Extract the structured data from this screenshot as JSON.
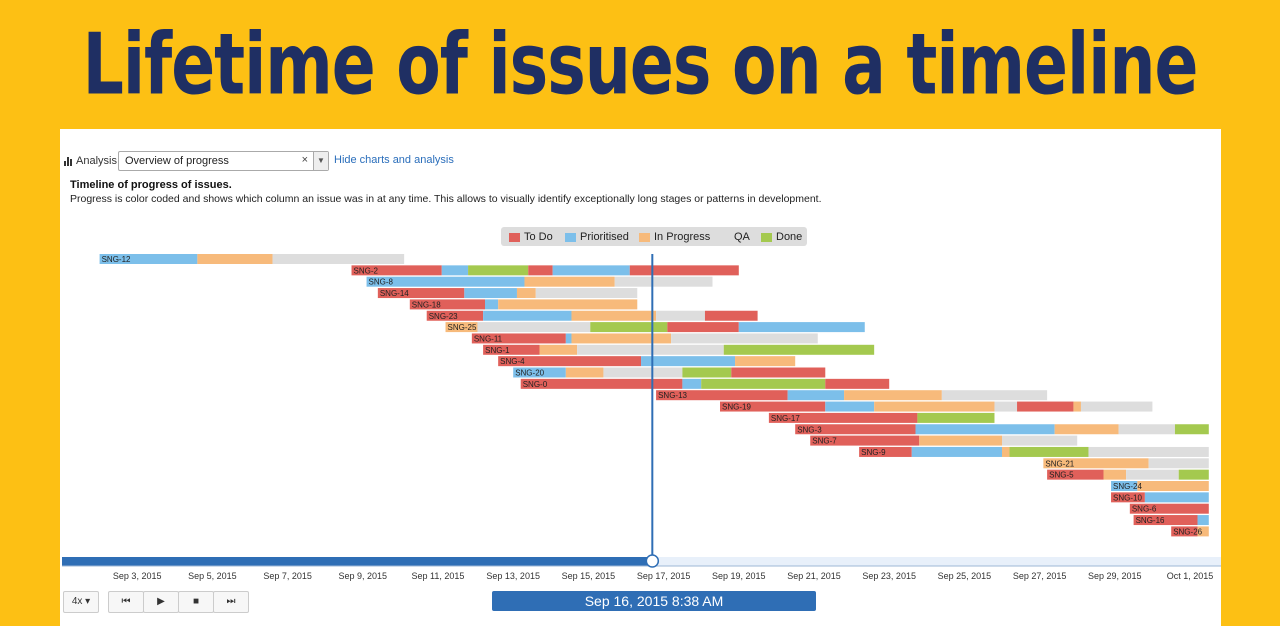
{
  "banner": {
    "title": "Lifetime of issues on a timeline"
  },
  "analysis": {
    "label": "Analysis",
    "select_value": "Overview of progress",
    "clear_glyph": "×",
    "hide_link": "Hide charts and analysis"
  },
  "description": {
    "title": "Timeline of progress of issues.",
    "text": "Progress is color coded and shows which column an issue was in at any time. This allows to visually identify exceptionally long stages or patterns in development."
  },
  "colors": {
    "To Do": "#E0605A",
    "Prioritised": "#7CBFEA",
    "In Progress": "#F7BA7B",
    "QA": "#DDDDDD",
    "Done": "#A4C94F",
    "cursor": "#2F6EB5"
  },
  "legend": [
    {
      "label": "To Do",
      "key": "To Do"
    },
    {
      "label": "Prioritised",
      "key": "Prioritised"
    },
    {
      "label": "In Progress",
      "key": "In Progress"
    },
    {
      "label": "QA",
      "key": "QA"
    },
    {
      "label": "Done",
      "key": "Done"
    }
  ],
  "chart_data": {
    "type": "bar",
    "orientation": "horizontal-gantt",
    "x_range_days": [
      0,
      30
    ],
    "x_ticks": [
      "Sep 3, 2015",
      "Sep 5, 2015",
      "Sep 7, 2015",
      "Sep 9, 2015",
      "Sep 11, 2015",
      "Sep 13, 2015",
      "Sep 15, 2015",
      "Sep 17, 2015",
      "Sep 19, 2015",
      "Sep 21, 2015",
      "Sep 23, 2015",
      "Sep 25, 2015",
      "Sep 27, 2015",
      "Sep 29, 2015",
      "Oct 1, 2015"
    ],
    "current_time_day": 15.7,
    "issues": [
      {
        "name": "SNG-12",
        "segments": [
          [
            1,
            3.6,
            "Prioritised"
          ],
          [
            3.6,
            5.6,
            "In Progress"
          ],
          [
            5.6,
            9.1,
            "QA"
          ]
        ]
      },
      {
        "name": "SNG-2",
        "segments": [
          [
            7.7,
            10.1,
            "To Do"
          ],
          [
            10.1,
            10.8,
            "Prioritised"
          ],
          [
            10.8,
            12.4,
            "Done"
          ],
          [
            12.4,
            13.05,
            "To Do"
          ],
          [
            13.05,
            15.1,
            "Prioritised"
          ],
          [
            15.1,
            18,
            "To Do"
          ]
        ]
      },
      {
        "name": "SNG-8",
        "segments": [
          [
            8.1,
            12.3,
            "Prioritised"
          ],
          [
            12.3,
            14.7,
            "In Progress"
          ],
          [
            14.7,
            17.3,
            "QA"
          ]
        ]
      },
      {
        "name": "SNG-14",
        "segments": [
          [
            8.4,
            10.7,
            "To Do"
          ],
          [
            10.7,
            12.1,
            "Prioritised"
          ],
          [
            12.1,
            12.6,
            "In Progress"
          ],
          [
            12.6,
            15.3,
            "QA"
          ]
        ]
      },
      {
        "name": "SNG-18",
        "segments": [
          [
            9.25,
            11.25,
            "To Do"
          ],
          [
            11.25,
            11.6,
            "Prioritised"
          ],
          [
            11.6,
            15.3,
            "In Progress"
          ]
        ]
      },
      {
        "name": "SNG-23",
        "segments": [
          [
            9.7,
            11.2,
            "To Do"
          ],
          [
            11.2,
            13.55,
            "Prioritised"
          ],
          [
            13.55,
            15.8,
            "In Progress"
          ],
          [
            15.8,
            17.1,
            "QA"
          ],
          [
            17.1,
            18.5,
            "To Do"
          ]
        ]
      },
      {
        "name": "SNG-25",
        "segments": [
          [
            10.2,
            11.05,
            "In Progress"
          ],
          [
            11.05,
            14.05,
            "QA"
          ],
          [
            14.05,
            16.1,
            "Done"
          ],
          [
            16.1,
            18,
            "To Do"
          ],
          [
            18,
            21.35,
            "Prioritised"
          ]
        ]
      },
      {
        "name": "SNG-11",
        "segments": [
          [
            10.9,
            13.4,
            "To Do"
          ],
          [
            13.4,
            13.55,
            "Prioritised"
          ],
          [
            13.55,
            16.2,
            "In Progress"
          ],
          [
            16.2,
            20.1,
            "QA"
          ]
        ]
      },
      {
        "name": "SNG-1",
        "segments": [
          [
            11.2,
            12.7,
            "To Do"
          ],
          [
            12.7,
            13.7,
            "In Progress"
          ],
          [
            13.7,
            17.6,
            "QA"
          ],
          [
            17.6,
            21.6,
            "Done"
          ]
        ]
      },
      {
        "name": "SNG-4",
        "segments": [
          [
            11.6,
            15.4,
            "To Do"
          ],
          [
            15.4,
            17.9,
            "Prioritised"
          ],
          [
            17.9,
            19.5,
            "In Progress"
          ]
        ]
      },
      {
        "name": "SNG-20",
        "segments": [
          [
            12.0,
            13.4,
            "Prioritised"
          ],
          [
            13.4,
            14.4,
            "In Progress"
          ],
          [
            14.4,
            16.5,
            "QA"
          ],
          [
            16.5,
            17.8,
            "Done"
          ],
          [
            17.8,
            20.3,
            "To Do"
          ]
        ]
      },
      {
        "name": "SNG-0",
        "segments": [
          [
            12.2,
            16.5,
            "To Do"
          ],
          [
            16.5,
            17.0,
            "Prioritised"
          ],
          [
            17.0,
            20.3,
            "Done"
          ],
          [
            20.3,
            22.0,
            "To Do"
          ]
        ]
      },
      {
        "name": "SNG-13",
        "segments": [
          [
            15.8,
            19.3,
            "To Do"
          ],
          [
            19.3,
            20.8,
            "Prioritised"
          ],
          [
            20.8,
            23.4,
            "In Progress"
          ],
          [
            23.4,
            26.2,
            "QA"
          ]
        ]
      },
      {
        "name": "SNG-19",
        "segments": [
          [
            17.5,
            20.3,
            "To Do"
          ],
          [
            20.3,
            21.6,
            "Prioritised"
          ],
          [
            21.6,
            24.8,
            "In Progress"
          ],
          [
            24.8,
            25.4,
            "QA"
          ],
          [
            25.4,
            26.9,
            "To Do"
          ],
          [
            26.9,
            27.1,
            "In Progress"
          ],
          [
            27.1,
            29.0,
            "QA"
          ]
        ]
      },
      {
        "name": "SNG-17",
        "segments": [
          [
            18.8,
            22.75,
            "To Do"
          ],
          [
            22.75,
            24.8,
            "Done"
          ]
        ]
      },
      {
        "name": "SNG-3",
        "segments": [
          [
            19.5,
            22.7,
            "To Do"
          ],
          [
            22.7,
            26.4,
            "Prioritised"
          ],
          [
            26.4,
            28.1,
            "In Progress"
          ],
          [
            28.1,
            29.6,
            "QA"
          ],
          [
            29.6,
            30.5,
            "Done"
          ]
        ]
      },
      {
        "name": "SNG-7",
        "segments": [
          [
            19.9,
            22.8,
            "To Do"
          ],
          [
            22.8,
            25.0,
            "In Progress"
          ],
          [
            25.0,
            27.0,
            "QA"
          ]
        ]
      },
      {
        "name": "SNG-9",
        "segments": [
          [
            21.2,
            22.6,
            "To Do"
          ],
          [
            22.6,
            25.0,
            "Prioritised"
          ],
          [
            25.0,
            25.2,
            "In Progress"
          ],
          [
            25.2,
            27.3,
            "Done"
          ],
          [
            27.3,
            30.5,
            "QA"
          ]
        ]
      },
      {
        "name": "SNG-21",
        "segments": [
          [
            26.1,
            28.9,
            "In Progress"
          ],
          [
            28.9,
            30.5,
            "QA"
          ]
        ]
      },
      {
        "name": "SNG-5",
        "segments": [
          [
            26.2,
            27.7,
            "To Do"
          ],
          [
            27.7,
            28.3,
            "In Progress"
          ],
          [
            28.3,
            29.7,
            "QA"
          ],
          [
            29.7,
            30.5,
            "Done"
          ]
        ]
      },
      {
        "name": "SNG-24",
        "segments": [
          [
            27.9,
            28.6,
            "Prioritised"
          ],
          [
            28.6,
            30.5,
            "In Progress"
          ]
        ]
      },
      {
        "name": "SNG-10",
        "segments": [
          [
            27.9,
            28.8,
            "To Do"
          ],
          [
            28.8,
            30.5,
            "Prioritised"
          ]
        ]
      },
      {
        "name": "SNG-6",
        "segments": [
          [
            28.4,
            30.5,
            "To Do"
          ]
        ]
      },
      {
        "name": "SNG-16",
        "segments": [
          [
            28.5,
            30.2,
            "To Do"
          ],
          [
            30.2,
            30.5,
            "Prioritised"
          ]
        ]
      },
      {
        "name": "SNG-26",
        "segments": [
          [
            29.5,
            30.2,
            "To Do"
          ],
          [
            30.2,
            30.5,
            "In Progress"
          ]
        ]
      }
    ]
  },
  "playback": {
    "speed": "4x",
    "current_datetime": "Sep 16, 2015 8:38 AM"
  }
}
